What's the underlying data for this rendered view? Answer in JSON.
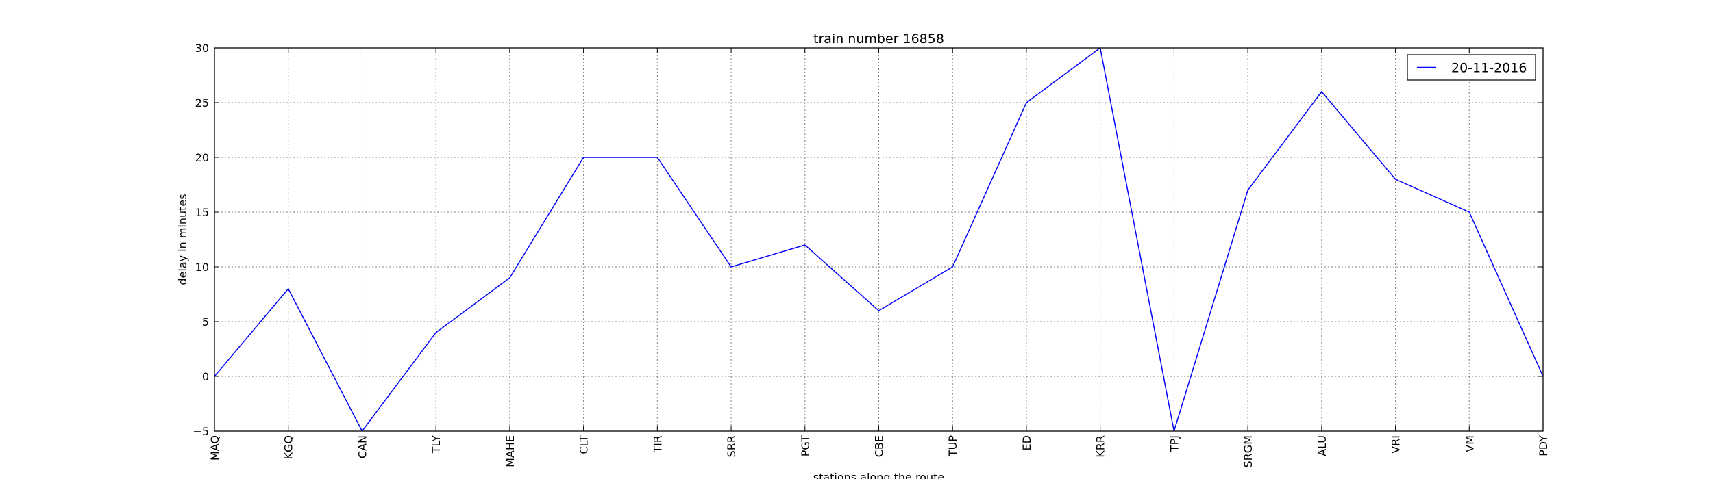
{
  "chart_data": {
    "type": "line",
    "title": "train number 16858",
    "xlabel": "stations along the route",
    "ylabel": "delay in minutes",
    "categories": [
      "MAQ",
      "KGQ",
      "CAN",
      "TLY",
      "MAHE",
      "CLT",
      "TIR",
      "SRR",
      "PGT",
      "CBE",
      "TUP",
      "ED",
      "KRR",
      "TPJ",
      "SRGM",
      "ALU",
      "VRI",
      "VM",
      "PDY"
    ],
    "series": [
      {
        "name": "20-11-2016",
        "color": "#0000ff",
        "values": [
          0,
          8,
          -5,
          4,
          9,
          20,
          20,
          10,
          12,
          6,
          10,
          25,
          30,
          -5,
          17,
          26,
          18,
          15,
          0
        ]
      }
    ],
    "ylim": [
      -5,
      30
    ],
    "yticks": [
      -5,
      0,
      5,
      10,
      15,
      20,
      25,
      30
    ],
    "grid": true,
    "legend_position": "top-right"
  }
}
